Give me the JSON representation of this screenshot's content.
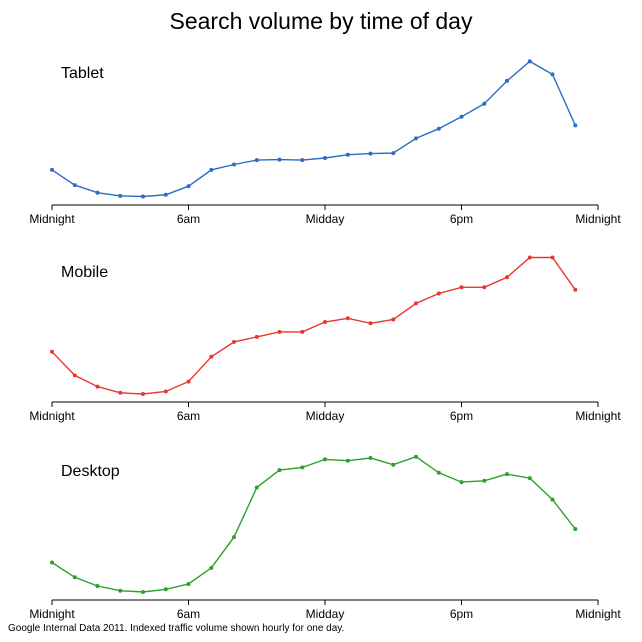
{
  "title": "Search volume by time of day",
  "footer": "Google Internal Data 2011. Indexed traffic volume shown hourly for one day.",
  "chart_data": [
    {
      "type": "line",
      "name": "Tablet",
      "x_ticks": [
        "Midnight",
        "6am",
        "Midday",
        "6pm",
        "Midnight"
      ],
      "x": [
        0,
        1,
        2,
        3,
        4,
        5,
        6,
        7,
        8,
        9,
        10,
        11,
        12,
        13,
        14,
        15,
        16,
        17,
        18,
        19,
        20,
        21,
        22,
        23
      ],
      "values": [
        25,
        11,
        4,
        1,
        0.5,
        2,
        10,
        25,
        30,
        34,
        34.5,
        34,
        36,
        39,
        40,
        40.5,
        54,
        63,
        74,
        86,
        107,
        125,
        113,
        66
      ],
      "color": "#2b6cc4",
      "ylim": [
        0,
        130
      ]
    },
    {
      "type": "line",
      "name": "Mobile",
      "x_ticks": [
        "Midnight",
        "6am",
        "Midday",
        "6pm",
        "Midnight"
      ],
      "x": [
        0,
        1,
        2,
        3,
        4,
        5,
        6,
        7,
        8,
        9,
        10,
        11,
        12,
        13,
        14,
        15,
        16,
        17,
        18,
        19,
        20,
        21,
        22,
        23
      ],
      "values": [
        34,
        15,
        6,
        1,
        0,
        2,
        10,
        30,
        42,
        46,
        50,
        50,
        58,
        61,
        57,
        60,
        73,
        81,
        86,
        86,
        94,
        110,
        110,
        84
      ],
      "color": "#e8382e",
      "ylim": [
        0,
        112
      ]
    },
    {
      "type": "line",
      "name": "Desktop",
      "x_ticks": [
        "Midnight",
        "6am",
        "Midday",
        "6pm",
        "Midnight"
      ],
      "x": [
        0,
        1,
        2,
        3,
        4,
        5,
        6,
        7,
        8,
        9,
        10,
        11,
        12,
        13,
        14,
        15,
        16,
        17,
        18,
        19,
        20,
        21,
        22,
        23
      ],
      "values": [
        22,
        11,
        4.5,
        1,
        0,
        2,
        6,
        18,
        41,
        78,
        91,
        93,
        99,
        98,
        100,
        95,
        101,
        89,
        82,
        83,
        88,
        85,
        69,
        47
      ],
      "color": "#2ca02c",
      "ylim": [
        0,
        103
      ]
    }
  ]
}
